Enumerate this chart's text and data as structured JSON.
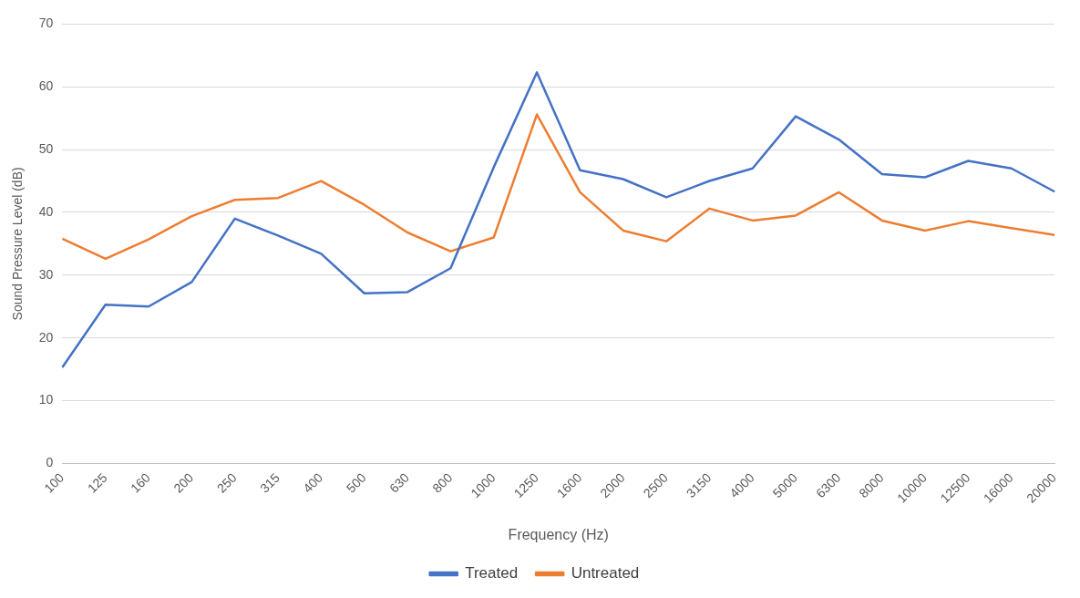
{
  "chart_data": {
    "type": "line",
    "xlabel": "Frequency (Hz)",
    "ylabel": "Sound Pressure Level (dB)",
    "categories": [
      "100",
      "125",
      "160",
      "200",
      "250",
      "315",
      "400",
      "500",
      "630",
      "800",
      "1000",
      "1250",
      "1600",
      "2000",
      "2500",
      "3150",
      "4000",
      "5000",
      "6300",
      "8000",
      "10000",
      "12500",
      "16000",
      "20000"
    ],
    "series": [
      {
        "name": "Treated",
        "color": "#4472c4",
        "values": [
          15.3,
          25.3,
          25.0,
          28.9,
          39.0,
          36.3,
          33.4,
          27.1,
          27.3,
          31.1,
          47.2,
          62.3,
          46.7,
          45.3,
          42.4,
          45.0,
          47.0,
          55.3,
          51.6,
          46.1,
          45.6,
          48.2,
          47.0,
          43.3
        ]
      },
      {
        "name": "Untreated",
        "color": "#ed7d31",
        "values": [
          35.8,
          32.6,
          35.7,
          39.4,
          42.0,
          42.3,
          45.0,
          41.2,
          36.8,
          33.8,
          36.0,
          55.6,
          43.2,
          37.1,
          35.4,
          40.6,
          38.7,
          39.5,
          43.2,
          38.7,
          37.1,
          38.6,
          37.5,
          36.4
        ]
      }
    ],
    "ylim": [
      0,
      70
    ],
    "yticks": [
      0,
      10,
      20,
      30,
      40,
      50,
      60,
      70
    ],
    "grid": "y",
    "legend": "bottom",
    "marker": "none",
    "line_style": "solid"
  }
}
